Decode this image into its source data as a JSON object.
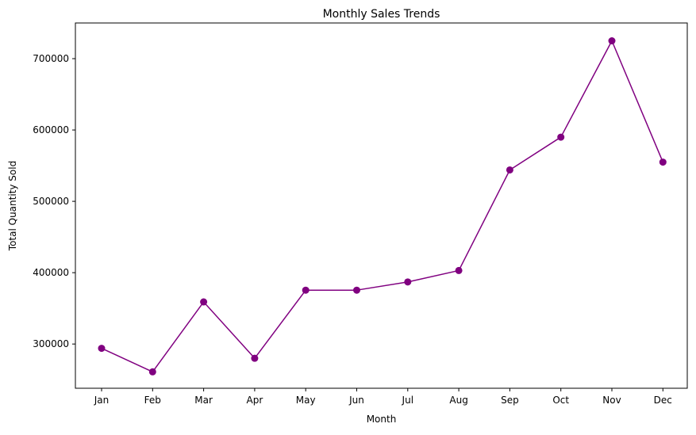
{
  "chart_data": {
    "type": "line",
    "title": "Monthly Sales Trends",
    "xlabel": "Month",
    "ylabel": "Total Quantity Sold",
    "categories": [
      "Jan",
      "Feb",
      "Mar",
      "Apr",
      "May",
      "Jun",
      "Jul",
      "Aug",
      "Sep",
      "Oct",
      "Nov",
      "Dec"
    ],
    "series": [
      {
        "values": [
          294000,
          261000,
          359000,
          280000,
          375500,
          375500,
          387000,
          403000,
          544000,
          590000,
          725000,
          555000
        ],
        "color": "#800080",
        "marker": "circle"
      }
    ],
    "ylim": [
      238000,
      750000
    ],
    "yticks": [
      300000,
      400000,
      500000,
      600000,
      700000
    ],
    "ytick_labels": [
      "300000",
      "400000",
      "500000",
      "600000",
      "700000"
    ],
    "grid": false,
    "legend": "none"
  }
}
